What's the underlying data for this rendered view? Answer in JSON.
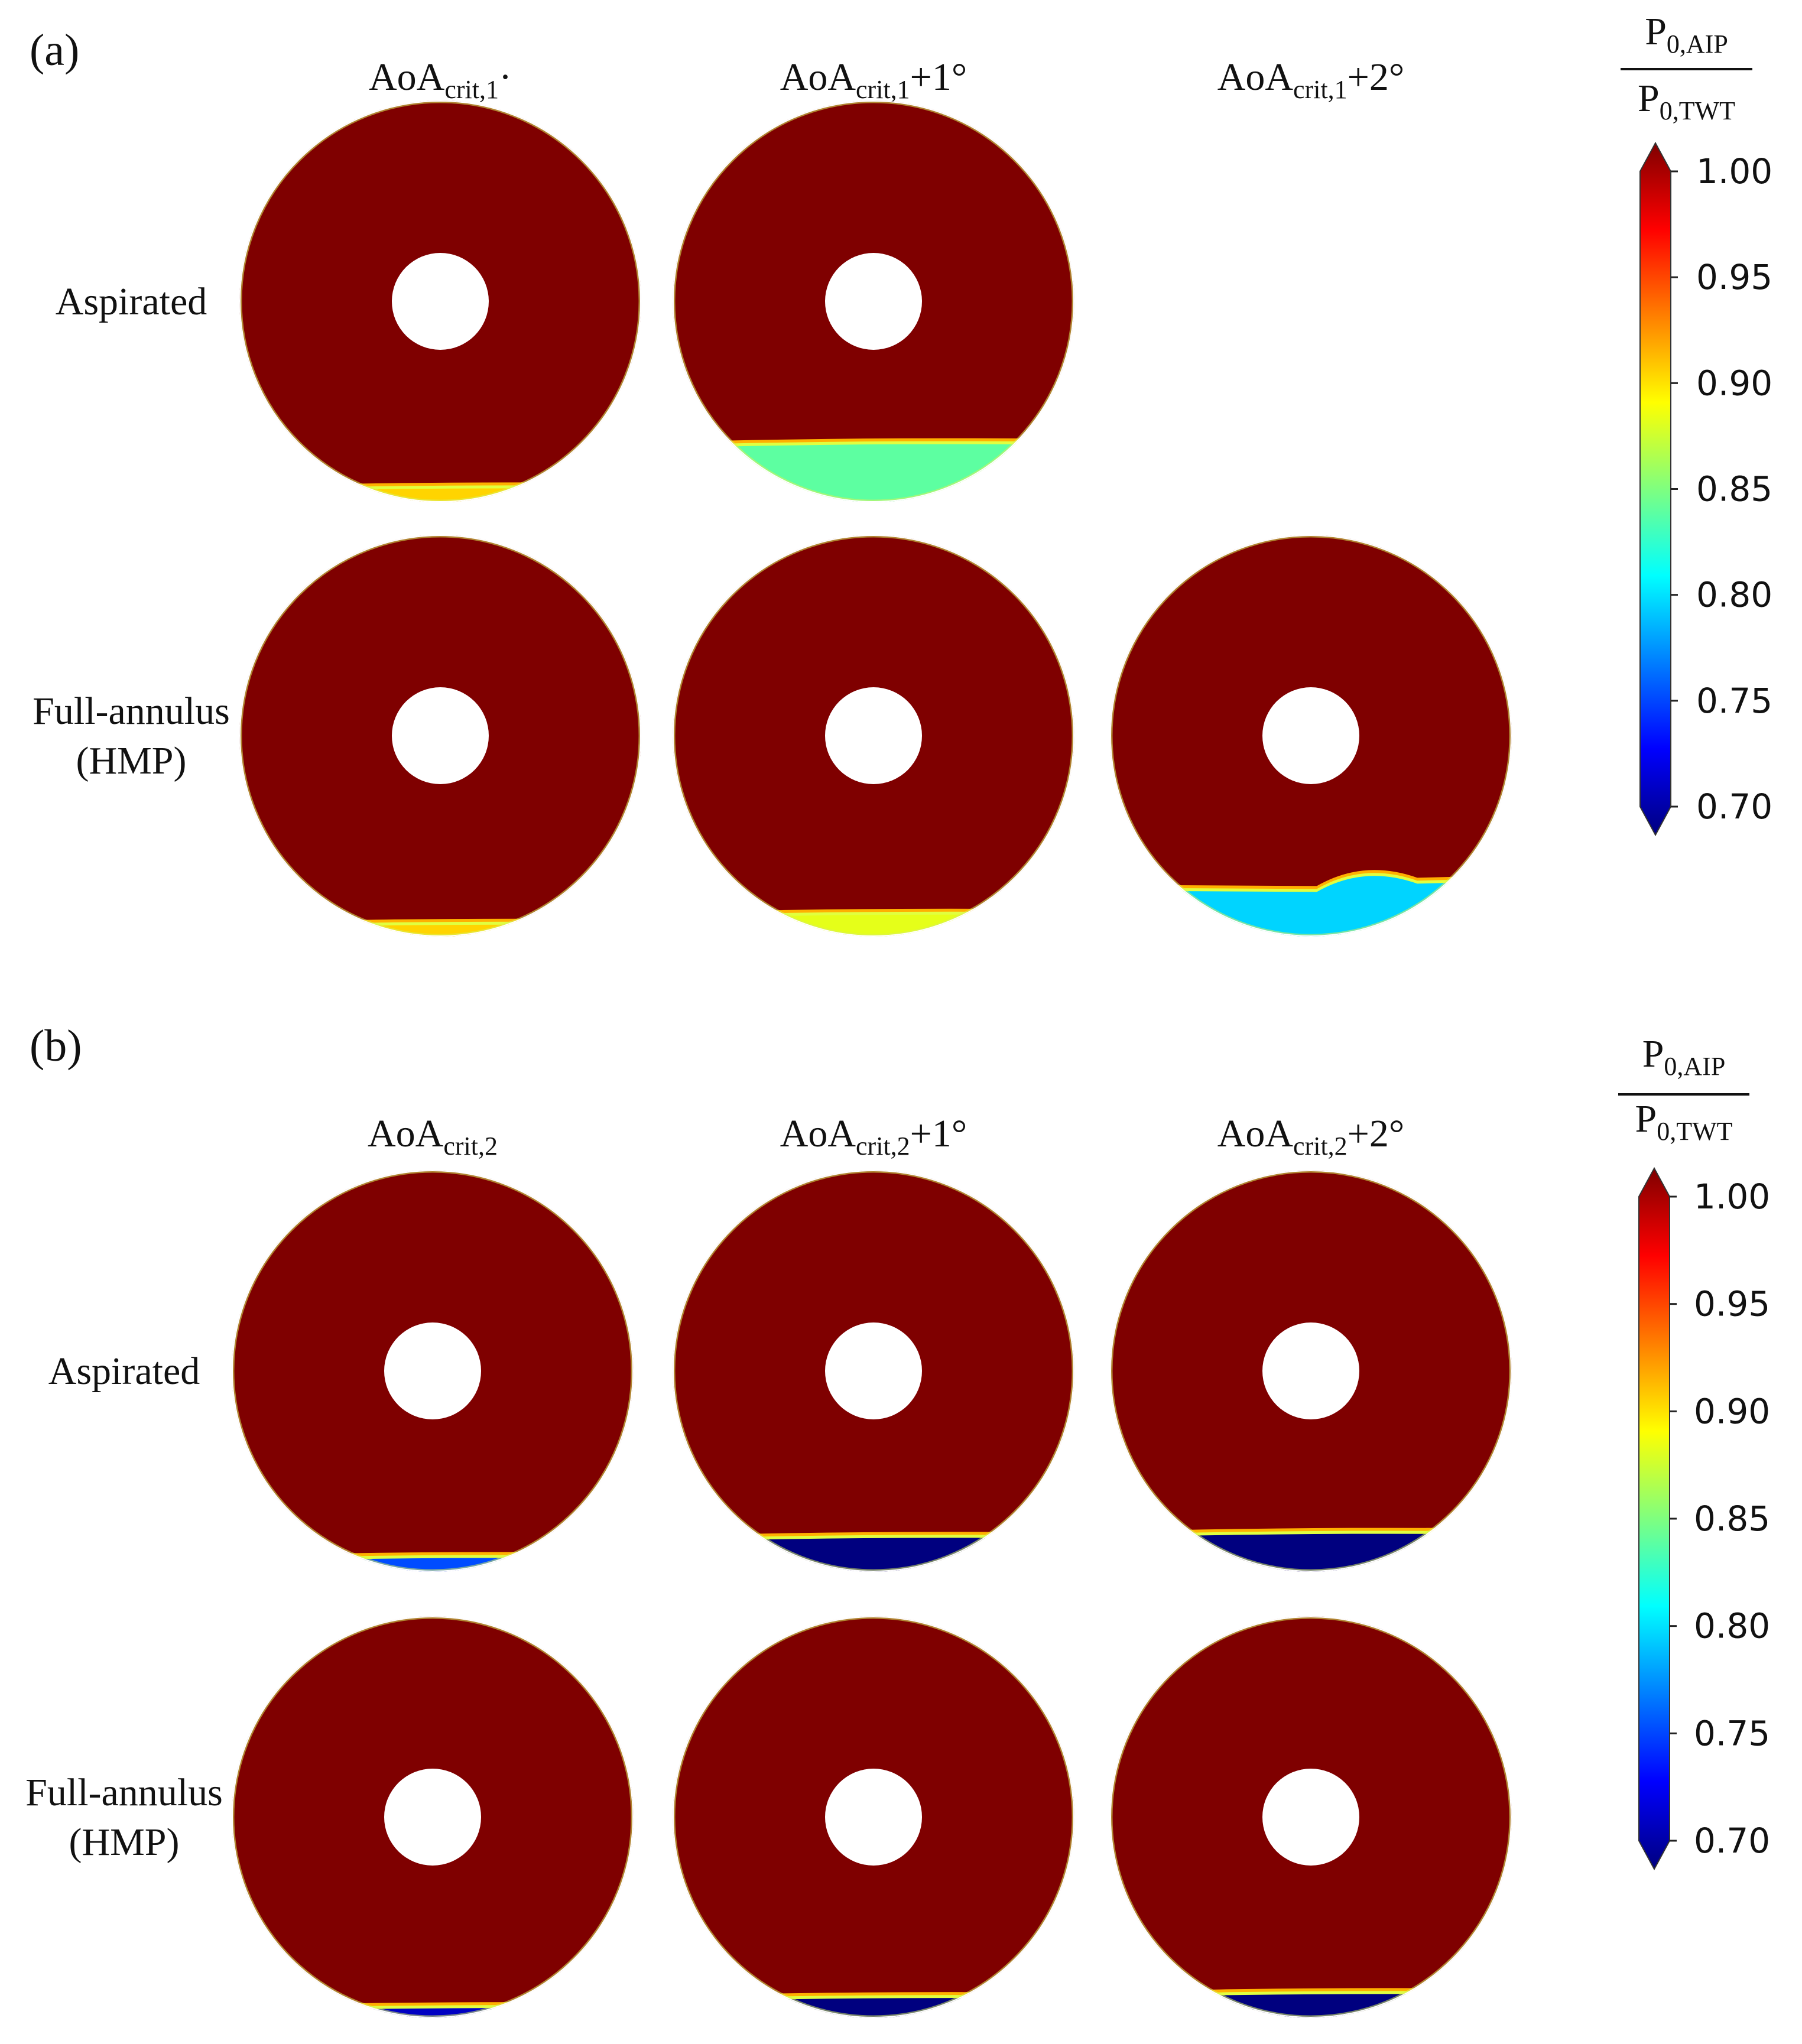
{
  "colorbar_colors": [
    "#00007f",
    "#0000ff",
    "#007fff",
    "#00ffff",
    "#7fff7f",
    "#ffff00",
    "#ff7f00",
    "#ff0000",
    "#7f0000"
  ],
  "colors": {
    "background": "#ffffff",
    "disk_base": "#7f0000",
    "deficit_mild": "#46e6b4",
    "deficit_light_blue": "#28c8f5",
    "deficit_strong": "#02058c"
  },
  "panels": [
    {
      "id": "a",
      "label": "(a)",
      "columns": [
        {
          "main": "AoA",
          "sub": "crit,1",
          "suffix": "·"
        },
        {
          "main": "AoA",
          "sub": "crit,1",
          "suffix": "+1°"
        },
        {
          "main": "AoA",
          "sub": "crit,1",
          "suffix": "+2°"
        }
      ],
      "rows": [
        {
          "lines": [
            "Aspirated"
          ]
        },
        {
          "lines": [
            "Full-annulus",
            "(HMP)"
          ]
        }
      ],
      "colorbar": {
        "numerator": {
          "main": "P",
          "sub": "0,AIP"
        },
        "denominator": {
          "main": "P",
          "sub": "0,TWT"
        },
        "ticks": [
          "1.00",
          "0.95",
          "0.90",
          "0.85",
          "0.80",
          "0.75",
          "0.70"
        ],
        "vmin": 0.7,
        "vmax": 1.0
      },
      "cells": [
        {
          "row": 0,
          "col": 0,
          "shown": true,
          "deficit_extent": 0.03,
          "deficit_value": 0.9
        },
        {
          "row": 0,
          "col": 1,
          "shown": true,
          "deficit_extent": 0.14,
          "deficit_value": 0.84
        },
        {
          "row": 0,
          "col": 2,
          "shown": false
        },
        {
          "row": 1,
          "col": 0,
          "shown": true,
          "deficit_extent": 0.025,
          "deficit_value": 0.9
        },
        {
          "row": 1,
          "col": 1,
          "shown": true,
          "deficit_extent": 0.05,
          "deficit_value": 0.88
        },
        {
          "row": 1,
          "col": 2,
          "shown": true,
          "deficit_extent": 0.12,
          "deficit_value": 0.8,
          "bump": true
        }
      ]
    },
    {
      "id": "b",
      "label": "(b)",
      "columns": [
        {
          "main": "AoA",
          "sub": "crit,2",
          "suffix": ""
        },
        {
          "main": "AoA",
          "sub": "crit,2",
          "suffix": "+1°"
        },
        {
          "main": "AoA",
          "sub": "crit,2",
          "suffix": "+2°"
        }
      ],
      "rows": [
        {
          "lines": [
            "Aspirated"
          ]
        },
        {
          "lines": [
            "Full-annulus",
            "(HMP)"
          ]
        }
      ],
      "colorbar": {
        "numerator": {
          "main": "P",
          "sub": "0,AIP"
        },
        "denominator": {
          "main": "P",
          "sub": "0,TWT"
        },
        "ticks": [
          "1.00",
          "0.95",
          "0.90",
          "0.85",
          "0.80",
          "0.75",
          "0.70"
        ],
        "vmin": 0.7,
        "vmax": 1.0
      },
      "cells": [
        {
          "row": 0,
          "col": 0,
          "shown": true,
          "deficit_extent": 0.03,
          "deficit_value": 0.76
        },
        {
          "row": 0,
          "col": 1,
          "shown": true,
          "deficit_extent": 0.08,
          "deficit_value": 0.7
        },
        {
          "row": 0,
          "col": 2,
          "shown": true,
          "deficit_extent": 0.09,
          "deficit_value": 0.7
        },
        {
          "row": 1,
          "col": 0,
          "shown": true,
          "deficit_extent": 0.02,
          "deficit_value": 0.72
        },
        {
          "row": 1,
          "col": 1,
          "shown": true,
          "deficit_extent": 0.045,
          "deficit_value": 0.7
        },
        {
          "row": 1,
          "col": 2,
          "shown": true,
          "deficit_extent": 0.055,
          "deficit_value": 0.7
        }
      ]
    }
  ]
}
